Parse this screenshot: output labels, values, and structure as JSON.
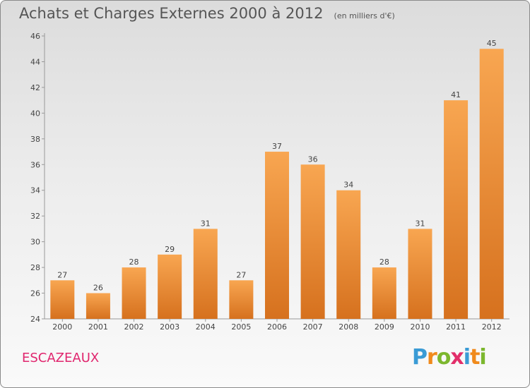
{
  "header": {
    "title": "Achats et Charges Externes 2000 à 2012",
    "unit": "(en milliers d'€)"
  },
  "footer": {
    "commune": "ESCAZEAUX",
    "logo": "Proxiti"
  },
  "colors": {
    "bar_top": "#f8a651",
    "bar_bottom": "#d6711e",
    "commune_text": "#e0266e"
  },
  "chart_data": {
    "type": "bar",
    "title": "Achats et Charges Externes 2000 à 2012",
    "subtitle": "(en milliers d'€)",
    "categories": [
      "2000",
      "2001",
      "2002",
      "2003",
      "2004",
      "2005",
      "2006",
      "2007",
      "2008",
      "2009",
      "2010",
      "2011",
      "2012"
    ],
    "values": [
      27,
      26,
      28,
      29,
      31,
      27,
      37,
      36,
      34,
      28,
      31,
      41,
      45
    ],
    "ylim": [
      24,
      46
    ],
    "yticks": [
      24,
      26,
      28,
      30,
      32,
      34,
      36,
      38,
      40,
      42,
      44,
      46
    ],
    "grid": false,
    "data_labels": true
  }
}
